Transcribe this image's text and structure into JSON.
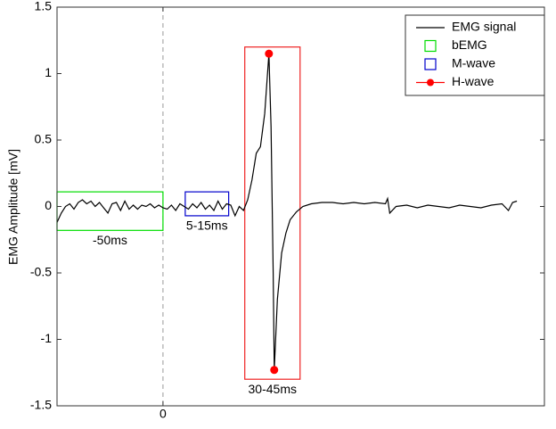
{
  "chart_data": {
    "type": "line",
    "ylabel": "EMG Amplitude [mV]",
    "xlim": [
      -50,
      180
    ],
    "xticks": [
      0
    ],
    "ylim": [
      -1.5,
      1.5
    ],
    "yticks": [
      1.5,
      1,
      0.5,
      0,
      -0.5,
      -1,
      -1.5
    ],
    "vline": 0,
    "legend": "upper right",
    "series": [
      {
        "name": "EMG signal",
        "color": "#000000",
        "x": [
          -50,
          -48,
          -46,
          -44,
          -42,
          -40,
          -38,
          -36,
          -34,
          -32,
          -30,
          -28,
          -26,
          -24,
          -22,
          -20,
          -18,
          -16,
          -14,
          -12,
          -10,
          -8,
          -6,
          -4,
          -2,
          0,
          2,
          4,
          6,
          8,
          10,
          12,
          14,
          16,
          18,
          20,
          22,
          24,
          26,
          28,
          30,
          32,
          34,
          36,
          38,
          40,
          42,
          44,
          46,
          48,
          50,
          51,
          52,
          52.5,
          54,
          56,
          58,
          60,
          63,
          66,
          70,
          75,
          80,
          85,
          90,
          95,
          100,
          105,
          106,
          107,
          110,
          115,
          120,
          125,
          130,
          135,
          140,
          145,
          150,
          155,
          160,
          163,
          165,
          167
        ],
        "values": [
          -0.12,
          -0.05,
          0.0,
          0.02,
          -0.02,
          0.03,
          0.05,
          0.02,
          0.04,
          0.0,
          0.03,
          -0.01,
          -0.05,
          0.02,
          0.03,
          -0.03,
          0.04,
          -0.02,
          0.01,
          -0.02,
          0.01,
          0.0,
          0.02,
          -0.01,
          0.01,
          -0.01,
          -0.02,
          0.01,
          -0.03,
          0.02,
          0.0,
          -0.02,
          0.02,
          -0.01,
          0.03,
          -0.02,
          0.01,
          -0.03,
          0.04,
          -0.02,
          0.02,
          0.01,
          -0.07,
          0.0,
          -0.03,
          0.05,
          0.2,
          0.4,
          0.45,
          0.7,
          1.15,
          0.6,
          -0.5,
          -1.23,
          -0.7,
          -0.35,
          -0.2,
          -0.1,
          -0.04,
          0.0,
          0.02,
          0.03,
          0.03,
          0.02,
          0.03,
          0.02,
          0.03,
          0.02,
          0.06,
          -0.05,
          0.0,
          0.01,
          -0.01,
          0.01,
          0.0,
          -0.01,
          0.01,
          0.0,
          -0.01,
          0.01,
          0.02,
          -0.03,
          0.03,
          0.04
        ]
      },
      {
        "name": "H-wave",
        "color": "#ff0000",
        "marker": "o",
        "x": [
          50,
          52.5
        ],
        "values": [
          1.15,
          -1.23
        ]
      }
    ],
    "boxes": [
      {
        "name": "bEMG",
        "label": "-50ms",
        "color": "#00dd00",
        "x": [
          -50,
          0
        ],
        "y": [
          -0.18,
          0.11
        ]
      },
      {
        "name": "M-wave",
        "label": "5-15ms",
        "color": "#0000cc",
        "x": [
          10.5,
          31
        ],
        "y": [
          -0.07,
          0.11
        ]
      },
      {
        "name": "H-wave",
        "label": "30-45ms",
        "color": "#ee2222",
        "x": [
          38.6,
          64.7
        ],
        "y": [
          -1.3,
          1.2
        ]
      }
    ]
  }
}
